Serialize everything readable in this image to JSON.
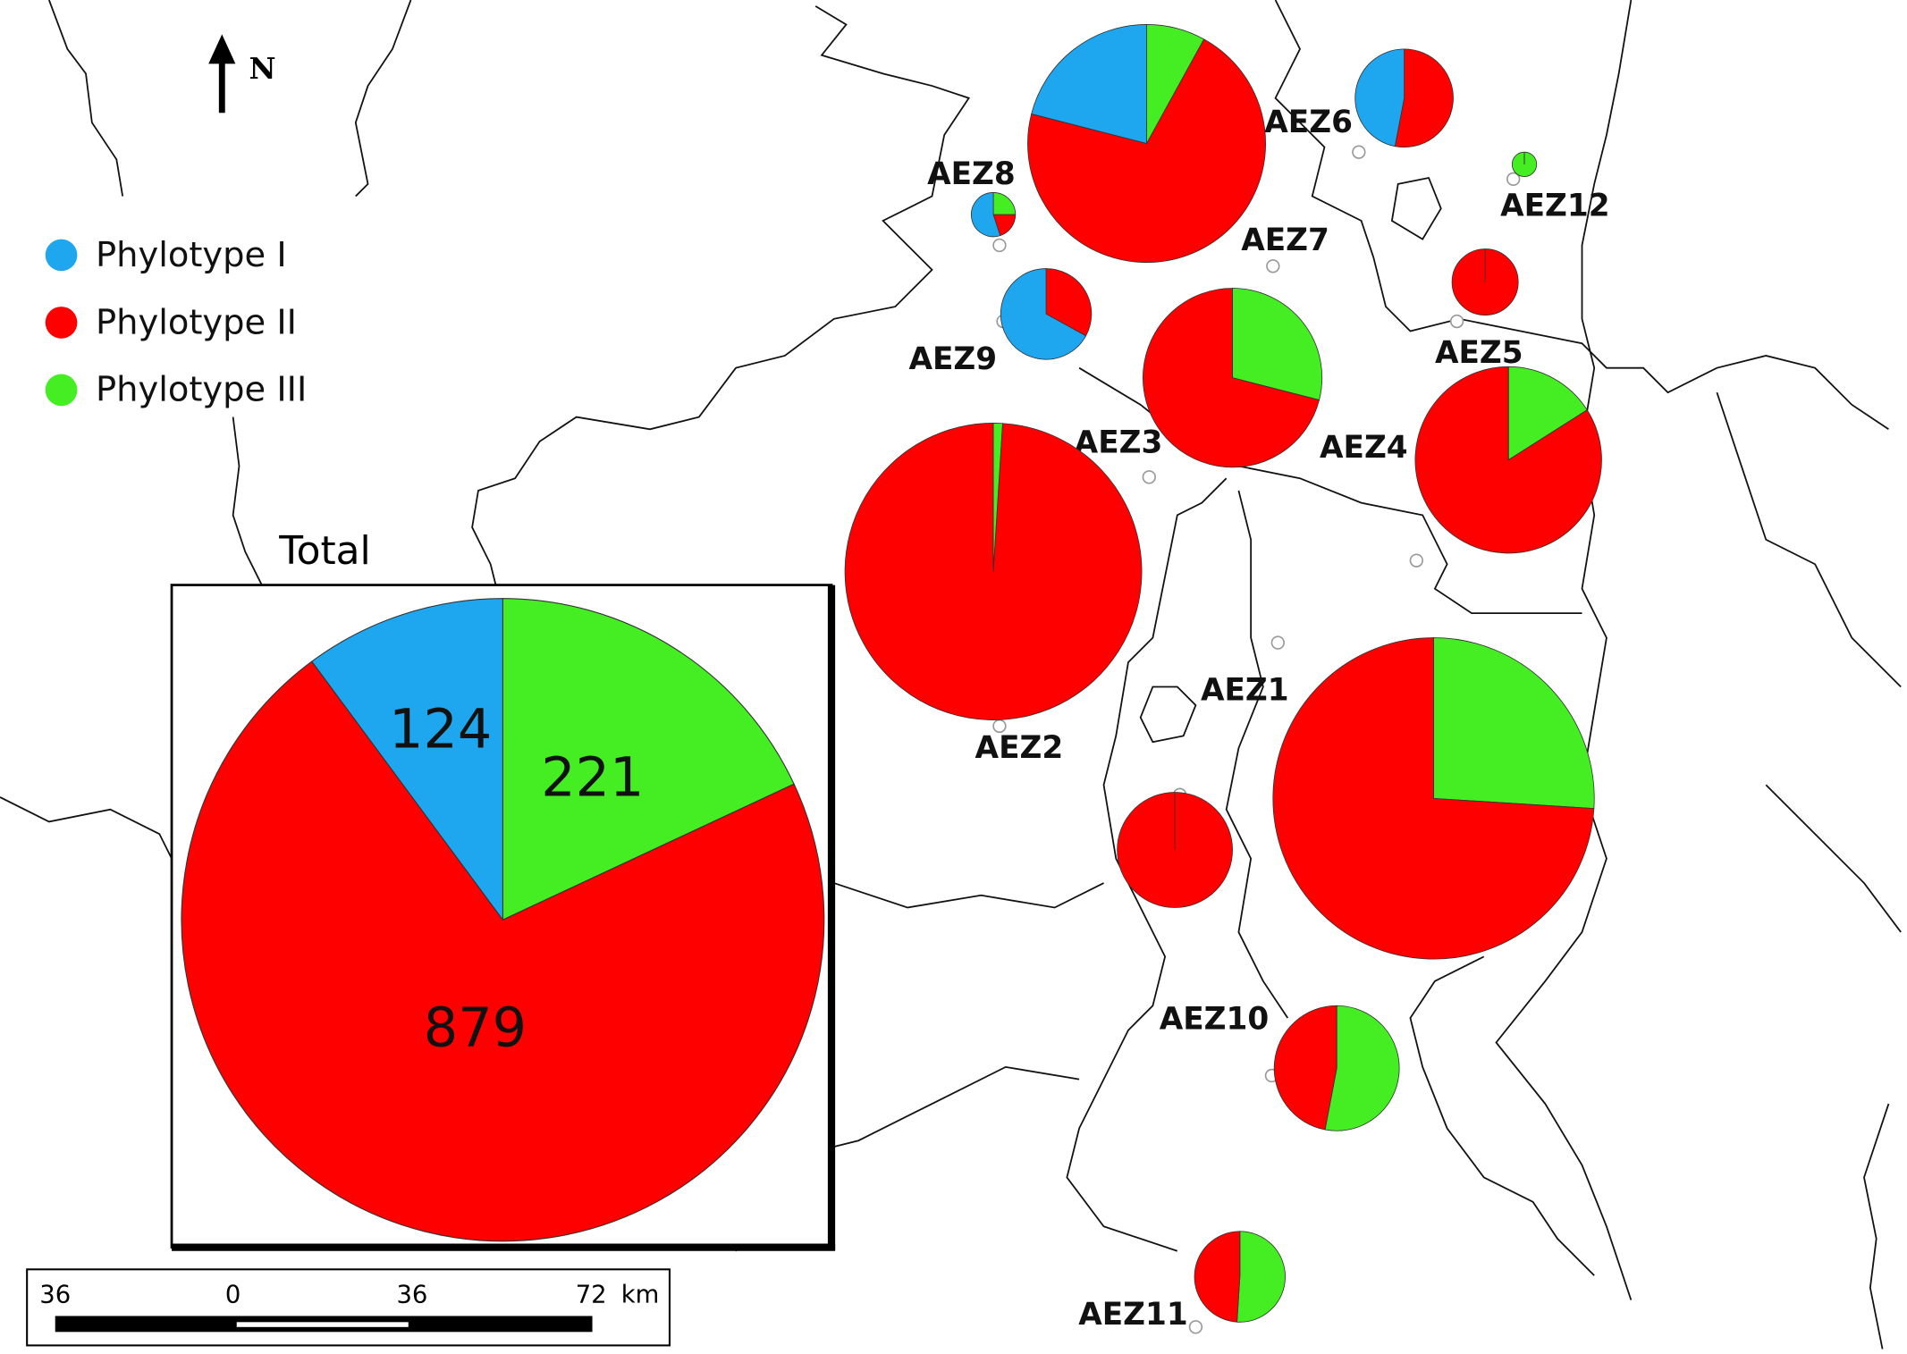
{
  "north": "N",
  "legend": [
    {
      "name": "Phylotype I",
      "color": "#1ea7ef"
    },
    {
      "name": "Phylotype II",
      "color": "#ff0000"
    },
    {
      "name": "Phylotype III",
      "color": "#44ee22"
    }
  ],
  "total": {
    "title": "Total",
    "values": [
      124,
      879,
      221
    ]
  },
  "zones": [
    {
      "label": "AEZ7",
      "values": [
        21,
        71,
        8
      ]
    },
    {
      "label": "AEZ6",
      "values": [
        47,
        53,
        0
      ]
    },
    {
      "label": "AEZ12",
      "values": [
        0,
        0,
        100
      ]
    },
    {
      "label": "AEZ8",
      "values": [
        55,
        20,
        25
      ]
    },
    {
      "label": "AEZ9",
      "values": [
        67,
        33,
        0
      ]
    },
    {
      "label": "AEZ5",
      "values": [
        0,
        100,
        0
      ]
    },
    {
      "label": "AEZ3",
      "values": [
        0,
        71,
        29
      ]
    },
    {
      "label": "AEZ4",
      "values": [
        0,
        84,
        16
      ]
    },
    {
      "label": "AEZ2",
      "values": [
        0,
        99,
        1
      ]
    },
    {
      "label": "AEZ1",
      "values": [
        0,
        74,
        26
      ]
    },
    {
      "label": null,
      "values": [
        0,
        100,
        0
      ]
    },
    {
      "label": "AEZ10",
      "values": [
        0,
        47,
        53
      ]
    },
    {
      "label": "AEZ11",
      "values": [
        0,
        49,
        51
      ]
    }
  ],
  "scale_bar": {
    "ticks": [
      "36",
      "0",
      "36",
      "72"
    ],
    "unit": "km"
  }
}
